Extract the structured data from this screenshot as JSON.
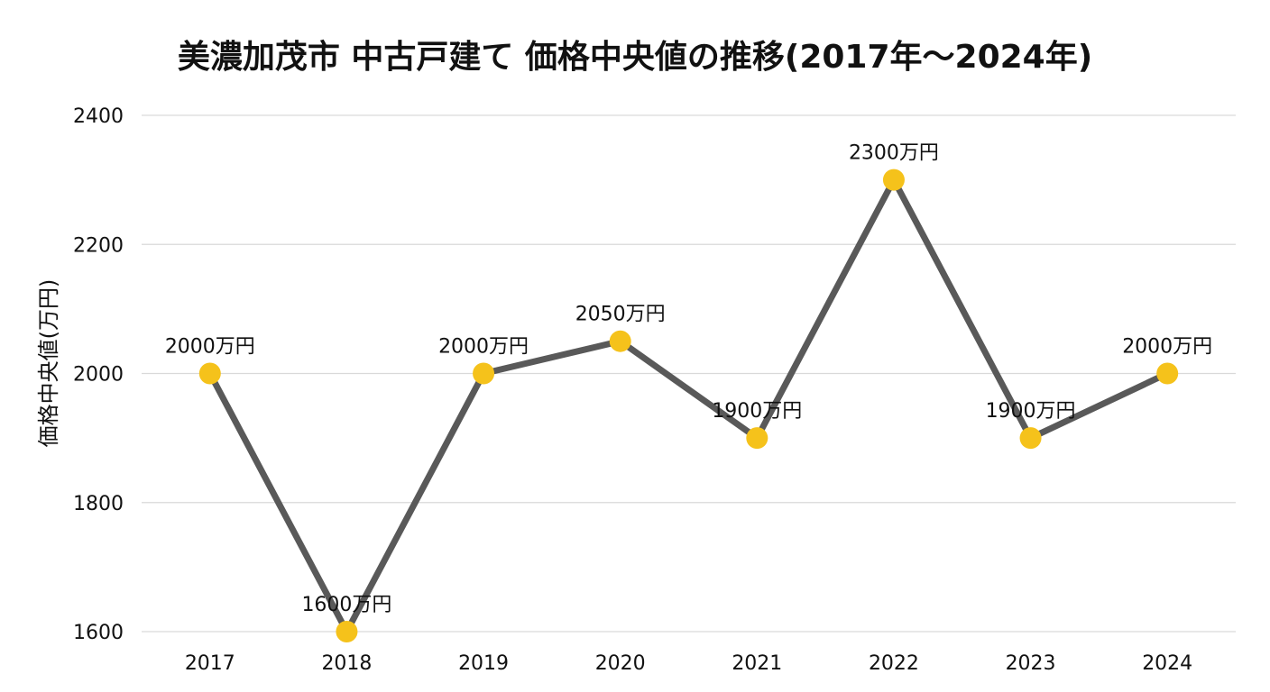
{
  "title": "美濃加茂市 中古戸建て 価格中央値の推移(2017年～2024年)",
  "chart_data": {
    "type": "line",
    "title": "美濃加茂市 中古戸建て 価格中央値の推移(2017年～2024年)",
    "xlabel": "",
    "ylabel": "価格中央値(万円)",
    "categories": [
      "2017",
      "2018",
      "2019",
      "2020",
      "2021",
      "2022",
      "2023",
      "2024"
    ],
    "values": [
      2000,
      1600,
      2000,
      2050,
      1900,
      2300,
      1900,
      2000
    ],
    "data_labels": [
      "2000万円",
      "1600万円",
      "2000万円",
      "2050万円",
      "1900万円",
      "2300万円",
      "1900万円",
      "2000万円"
    ],
    "ylim": [
      1600,
      2400
    ],
    "yticks": [
      "1600",
      "1800",
      "2000",
      "2200",
      "2400"
    ],
    "grid": true,
    "legend": "none",
    "line_color": "#595959",
    "marker_color": "#F5C21B",
    "grid_color": "#D9D9D9"
  }
}
